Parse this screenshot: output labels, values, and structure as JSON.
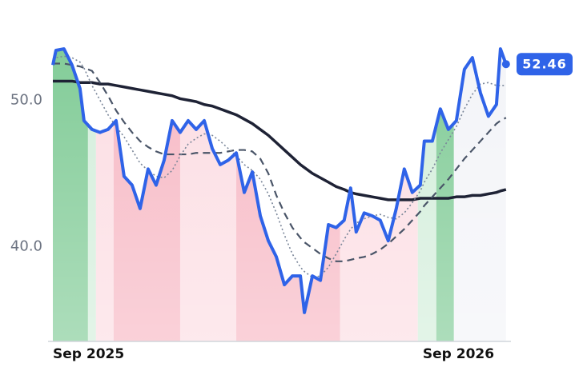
{
  "chart_data": {
    "type": "line",
    "x": [
      0,
      0.1,
      0.36,
      0.62,
      0.88,
      1.01,
      1.27,
      1.53,
      1.79,
      2.05,
      2.31,
      2.57,
      2.83,
      3.09,
      3.35,
      3.61,
      3.87,
      4.13,
      4.39,
      4.65,
      4.91,
      5.17,
      5.43,
      5.69,
      5.95,
      6.21,
      6.47,
      6.73,
      6.99,
      7.25,
      7.51,
      7.77,
      8.03,
      8.16,
      8.42,
      8.68,
      8.94,
      9.19,
      9.45,
      9.66,
      9.84,
      10.1,
      10.36,
      10.62,
      10.88,
      11.14,
      11.4,
      11.66,
      11.92,
      12.05,
      12.31,
      12.57,
      12.83,
      13.09,
      13.35,
      13.61,
      13.87,
      14.13,
      14.39,
      14.52,
      14.7
    ],
    "series": [
      {
        "color": "#1e2235",
        "style": "solid",
        "width": 3.5,
        "values": [
          51.3,
          51.3,
          51.3,
          51.3,
          51.2,
          51.2,
          51.2,
          51.1,
          51.1,
          51.0,
          50.9,
          50.8,
          50.7,
          50.6,
          50.5,
          50.4,
          50.3,
          50.1,
          50.0,
          49.9,
          49.7,
          49.6,
          49.4,
          49.2,
          49.0,
          48.7,
          48.4,
          48.0,
          47.6,
          47.1,
          46.6,
          46.1,
          45.6,
          45.4,
          45.0,
          44.7,
          44.4,
          44.1,
          43.9,
          43.7,
          43.6,
          43.5,
          43.4,
          43.3,
          43.2,
          43.2,
          43.2,
          43.2,
          43.3,
          43.3,
          43.3,
          43.3,
          43.3,
          43.4,
          43.4,
          43.5,
          43.5,
          43.6,
          43.7,
          43.8,
          43.9
        ]
      },
      {
        "color": "#4a5568",
        "style": "dashed",
        "width": 2.2,
        "values": [
          52.5,
          52.5,
          52.5,
          52.4,
          52.3,
          52.2,
          52.0,
          51.2,
          50.3,
          49.3,
          48.5,
          47.8,
          47.2,
          46.8,
          46.5,
          46.3,
          46.3,
          46.3,
          46.3,
          46.4,
          46.4,
          46.4,
          46.4,
          46.5,
          46.6,
          46.6,
          46.5,
          46.0,
          45.0,
          43.5,
          42.3,
          41.3,
          40.6,
          40.3,
          39.9,
          39.5,
          39.2,
          39.0,
          39.0,
          39.1,
          39.2,
          39.3,
          39.5,
          39.8,
          40.2,
          40.7,
          41.2,
          41.8,
          42.4,
          42.8,
          43.4,
          44.0,
          44.6,
          45.3,
          46.0,
          46.6,
          47.2,
          47.8,
          48.4,
          48.6,
          48.8
        ]
      },
      {
        "color": "#7a8699",
        "style": "dotted",
        "width": 1.6,
        "values": [
          52.8,
          52.9,
          53.0,
          52.9,
          52.6,
          52.2,
          51.0,
          50.0,
          49.0,
          48.2,
          47.5,
          46.6,
          45.7,
          45.2,
          44.8,
          44.7,
          45.2,
          46.2,
          47.0,
          47.4,
          47.7,
          47.6,
          47.2,
          46.7,
          46.2,
          45.6,
          45.2,
          44.6,
          43.6,
          42.3,
          40.8,
          39.5,
          38.6,
          38.3,
          37.9,
          38.0,
          38.6,
          39.5,
          40.5,
          41.2,
          41.6,
          41.9,
          42.1,
          42.2,
          42.0,
          41.9,
          42.3,
          43.0,
          43.8,
          44.4,
          45.3,
          46.4,
          47.3,
          48.2,
          49.4,
          50.4,
          51.1,
          51.2,
          51.0,
          51.0,
          51.0
        ]
      },
      {
        "color": "#2f63e8",
        "style": "solid",
        "width": 4,
        "values": [
          52.4,
          53.4,
          53.5,
          52.4,
          50.8,
          48.6,
          48.0,
          47.8,
          48.0,
          48.6,
          44.8,
          44.2,
          42.6,
          45.3,
          44.2,
          45.9,
          48.6,
          47.8,
          48.6,
          48.0,
          48.6,
          46.7,
          45.6,
          45.9,
          46.4,
          43.7,
          45.1,
          42.1,
          40.4,
          39.3,
          37.4,
          38.0,
          38.0,
          35.5,
          38.0,
          37.7,
          41.5,
          41.3,
          41.8,
          44.0,
          41.0,
          42.3,
          42.1,
          41.8,
          40.4,
          42.6,
          45.3,
          43.7,
          44.2,
          47.2,
          47.2,
          49.4,
          48.0,
          48.6,
          52.1,
          52.9,
          50.5,
          48.9,
          49.7,
          53.5,
          52.46
        ]
      }
    ],
    "bands": [
      {
        "start": 0,
        "end": 1.14,
        "color": "#80cb96"
      },
      {
        "start": 1.14,
        "end": 1.4,
        "color": "#d3eedb"
      },
      {
        "start": 1.4,
        "end": 1.97,
        "color": "#fcdde3"
      },
      {
        "start": 1.97,
        "end": 4.13,
        "color": "#f7b8c4"
      },
      {
        "start": 4.13,
        "end": 5.95,
        "color": "#fcdde3"
      },
      {
        "start": 5.95,
        "end": 9.32,
        "color": "#f7b8c4"
      },
      {
        "start": 9.32,
        "end": 11.84,
        "color": "#fcdde3"
      },
      {
        "start": 11.84,
        "end": 12.44,
        "color": "#d3eedb"
      },
      {
        "start": 12.44,
        "end": 13.01,
        "color": "#80cb96"
      },
      {
        "start": 13.01,
        "end": 14.7,
        "color": "#f3f4f8"
      }
    ],
    "xlim": [
      0,
      14.86
    ],
    "xticks": [
      {
        "value": 0,
        "label": "Sep 2025"
      },
      {
        "value": 12,
        "label": "Sep 2026"
      }
    ],
    "ylim": [
      33.53,
      55.2
    ],
    "yticks": [
      {
        "value": 40,
        "label": "40.0"
      },
      {
        "value": 50,
        "label": "50.0"
      }
    ],
    "grid": false
  }
}
